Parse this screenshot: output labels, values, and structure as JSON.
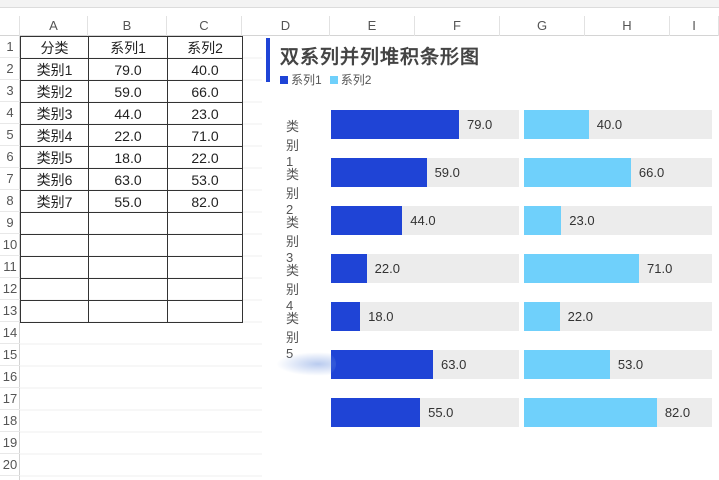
{
  "columns": [
    "A",
    "B",
    "C",
    "D",
    "E",
    "F",
    "G",
    "H",
    "I"
  ],
  "rows": [
    "1",
    "2",
    "3",
    "4",
    "5",
    "6",
    "7",
    "8",
    "9",
    "10",
    "11",
    "12",
    "13",
    "14",
    "15",
    "16",
    "17",
    "18",
    "19",
    "20"
  ],
  "table": {
    "header": [
      "分类",
      "系列1",
      "系列2"
    ],
    "rows": [
      [
        "类别1",
        "79.0",
        "40.0"
      ],
      [
        "类别2",
        "59.0",
        "66.0"
      ],
      [
        "类别3",
        "44.0",
        "23.0"
      ],
      [
        "类别4",
        "22.0",
        "71.0"
      ],
      [
        "类别5",
        "18.0",
        "22.0"
      ],
      [
        "类别6",
        "63.0",
        "53.0"
      ],
      [
        "类别7",
        "55.0",
        "82.0"
      ]
    ]
  },
  "colors": {
    "series1": "#1f44d6",
    "series2": "#6fd0fb",
    "track": "#ececec"
  },
  "chart_data": {
    "type": "bar",
    "title": "双系列并列堆积条形图",
    "legend": [
      "系列1",
      "系列2"
    ],
    "legend_position": "top-left",
    "categories": [
      "类别1",
      "类别2",
      "类别3",
      "类别4",
      "类别5",
      "",
      ""
    ],
    "series": [
      {
        "name": "系列1",
        "values": [
          79.0,
          59.0,
          44.0,
          22.0,
          18.0,
          63.0,
          55.0
        ]
      },
      {
        "name": "系列2",
        "values": [
          40.0,
          66.0,
          23.0,
          71.0,
          22.0,
          53.0,
          82.0
        ]
      }
    ],
    "xlim": [
      0,
      100
    ],
    "grid": false
  }
}
